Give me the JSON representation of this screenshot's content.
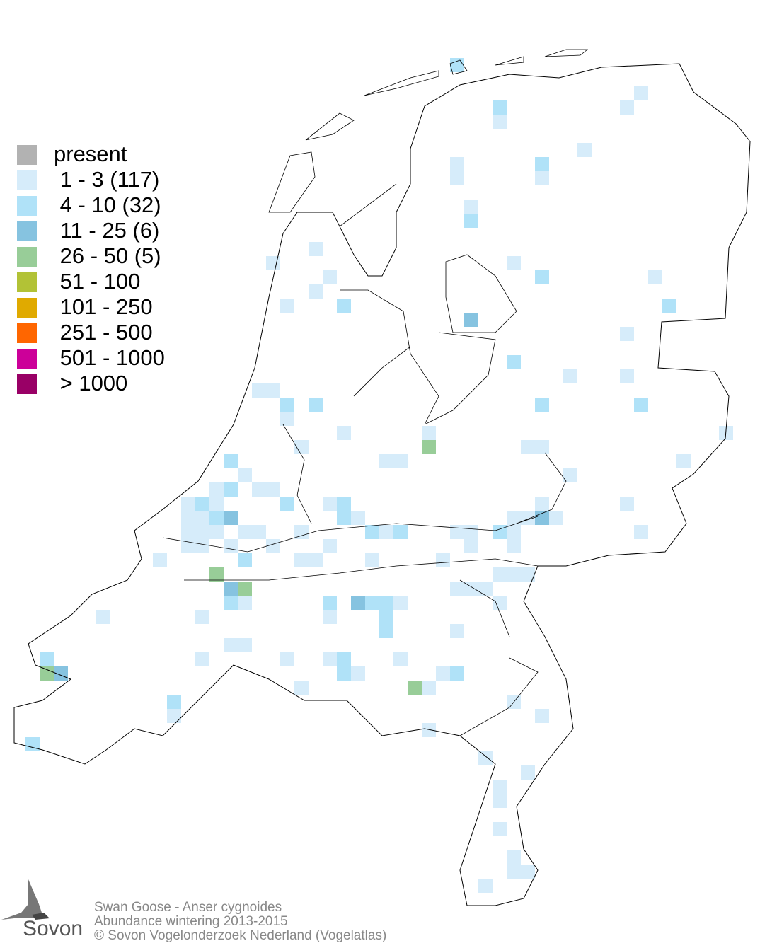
{
  "legend": {
    "items": [
      {
        "label": "present",
        "color": "#b2b2b2"
      },
      {
        "label": " 1 - 3 (117)",
        "color": "#d6ecfa"
      },
      {
        "label": " 4 - 10 (32)",
        "color": "#b0e2f8"
      },
      {
        "label": " 11 - 25 (6)",
        "color": "#86c3e0"
      },
      {
        "label": " 26 - 50 (5)",
        "color": "#98cd98"
      },
      {
        "label": " 51 - 100",
        "color": "#b2c236"
      },
      {
        "label": " 101 - 250",
        "color": "#e0aa00"
      },
      {
        "label": " 251 - 500",
        "color": "#ff6600"
      },
      {
        "label": " 501 - 1000",
        "color": "#cc0099"
      },
      {
        "label": " > 1000",
        "color": "#990066"
      }
    ]
  },
  "footer": {
    "species": "Swan Goose - Anser cygnoides",
    "subtitle": "Abundance wintering 2013-2015",
    "copyright": "© Sovon Vogelonderzoek Nederland (Vogelatlas)"
  },
  "logo": {
    "text": "Sovon"
  }
}
